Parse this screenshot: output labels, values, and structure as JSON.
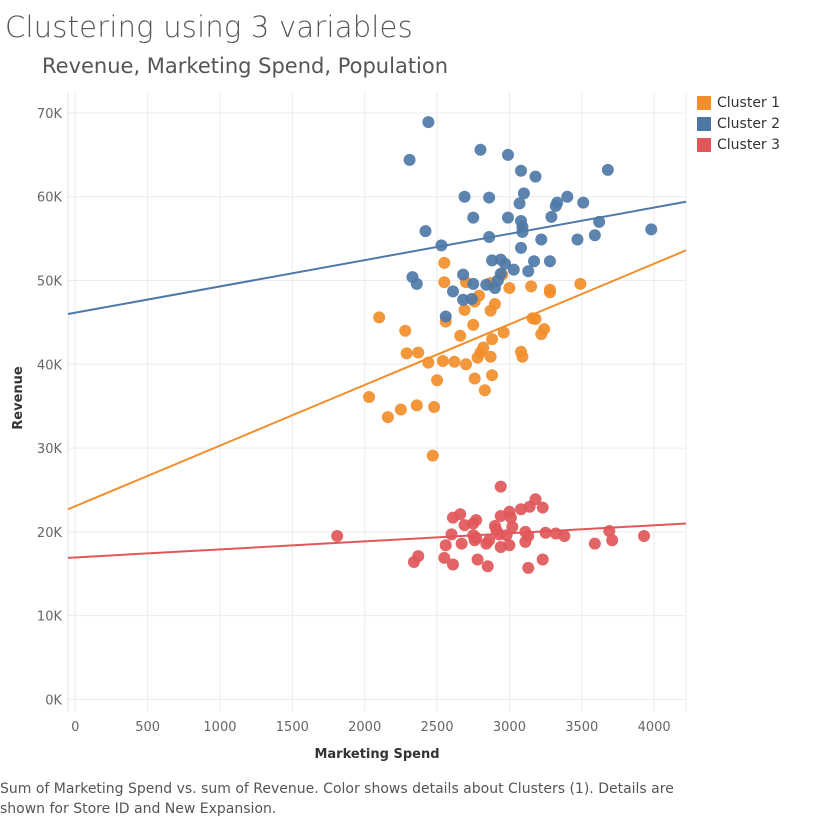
{
  "header": {
    "title": "Clustering using 3 variables",
    "subtitle": "Revenue, Marketing Spend, Population"
  },
  "caption": "Sum of Marketing Spend vs. sum of Revenue.  Color shows details about Clusters (1).  Details are shown for Store ID and New Expansion.",
  "chart_data": {
    "type": "scatter",
    "xlabel": "Marketing Spend",
    "ylabel": "Revenue",
    "xlim": [
      -50,
      4220
    ],
    "ylim": [
      -1500,
      72500
    ],
    "x_ticks": [
      0,
      500,
      1000,
      1500,
      2000,
      2500,
      3000,
      3500,
      4000
    ],
    "y_ticks": [
      0,
      10000,
      20000,
      30000,
      40000,
      50000,
      60000,
      70000
    ],
    "x_tick_labels": [
      "0",
      "500",
      "1000",
      "1500",
      "2000",
      "2500",
      "3000",
      "3500",
      "4000"
    ],
    "y_tick_labels": [
      "0K",
      "10K",
      "20K",
      "30K",
      "40K",
      "50K",
      "60K",
      "70K"
    ],
    "grid": true,
    "legend_position": "top-right",
    "series": [
      {
        "name": "Cluster 1",
        "color": "#f28e2b",
        "trend": [
          [
            -50,
            22700
          ],
          [
            4220,
            53600
          ]
        ],
        "points": [
          [
            2550,
            52100
          ],
          [
            2550,
            49800
          ],
          [
            2700,
            49800
          ],
          [
            2790,
            48200
          ],
          [
            2870,
            49700
          ],
          [
            2950,
            50700
          ],
          [
            2870,
            46400
          ],
          [
            2900,
            47200
          ],
          [
            2760,
            47500
          ],
          [
            2690,
            46500
          ],
          [
            2560,
            45100
          ],
          [
            2750,
            44700
          ],
          [
            2660,
            43400
          ],
          [
            3000,
            49100
          ],
          [
            3150,
            49300
          ],
          [
            3280,
            48600
          ],
          [
            3280,
            48900
          ],
          [
            3490,
            49600
          ],
          [
            3160,
            45500
          ],
          [
            3180,
            45400
          ],
          [
            3240,
            44200
          ],
          [
            3220,
            43600
          ],
          [
            2960,
            43800
          ],
          [
            2880,
            43000
          ],
          [
            2100,
            45600
          ],
          [
            2280,
            44000
          ],
          [
            2290,
            41300
          ],
          [
            2370,
            41400
          ],
          [
            2440,
            40200
          ],
          [
            2540,
            40400
          ],
          [
            2620,
            40300
          ],
          [
            2700,
            40000
          ],
          [
            2780,
            40800
          ],
          [
            2800,
            41400
          ],
          [
            2820,
            42000
          ],
          [
            2870,
            40900
          ],
          [
            3080,
            41500
          ],
          [
            3090,
            40900
          ],
          [
            2500,
            38100
          ],
          [
            2760,
            38300
          ],
          [
            2880,
            38700
          ],
          [
            2830,
            36900
          ],
          [
            2030,
            36100
          ],
          [
            2250,
            34600
          ],
          [
            2360,
            35100
          ],
          [
            2480,
            34900
          ],
          [
            2160,
            33700
          ],
          [
            2470,
            29100
          ]
        ]
      },
      {
        "name": "Cluster 2",
        "color": "#4e79a7",
        "trend": [
          [
            -50,
            46000
          ],
          [
            4220,
            59400
          ]
        ],
        "points": [
          [
            2440,
            68900
          ],
          [
            2310,
            64400
          ],
          [
            2800,
            65600
          ],
          [
            2990,
            65000
          ],
          [
            3080,
            63100
          ],
          [
            3180,
            62400
          ],
          [
            3680,
            63200
          ],
          [
            2690,
            60000
          ],
          [
            2860,
            59900
          ],
          [
            3100,
            60400
          ],
          [
            3070,
            59200
          ],
          [
            3330,
            59300
          ],
          [
            3400,
            60000
          ],
          [
            3510,
            59300
          ],
          [
            3320,
            58900
          ],
          [
            2750,
            57500
          ],
          [
            2990,
            57500
          ],
          [
            3080,
            57100
          ],
          [
            3290,
            57600
          ],
          [
            3620,
            57000
          ],
          [
            3090,
            56400
          ],
          [
            3090,
            55800
          ],
          [
            2420,
            55900
          ],
          [
            2860,
            55200
          ],
          [
            3220,
            54900
          ],
          [
            3470,
            54900
          ],
          [
            3590,
            55400
          ],
          [
            3980,
            56100
          ],
          [
            2530,
            54200
          ],
          [
            3080,
            53900
          ],
          [
            2880,
            52400
          ],
          [
            2940,
            52500
          ],
          [
            2970,
            52000
          ],
          [
            3170,
            52300
          ],
          [
            3280,
            52300
          ],
          [
            3030,
            51300
          ],
          [
            3130,
            51100
          ],
          [
            2680,
            50700
          ],
          [
            2940,
            50800
          ],
          [
            2330,
            50400
          ],
          [
            2920,
            50000
          ],
          [
            2360,
            49600
          ],
          [
            2750,
            49600
          ],
          [
            2840,
            49500
          ],
          [
            2900,
            49100
          ],
          [
            2610,
            48700
          ],
          [
            2680,
            47700
          ],
          [
            2740,
            47800
          ],
          [
            2560,
            45700
          ]
        ]
      },
      {
        "name": "Cluster 3",
        "color": "#e15759",
        "trend": [
          [
            -50,
            16900
          ],
          [
            4220,
            21000
          ]
        ],
        "points": [
          [
            2940,
            25400
          ],
          [
            3180,
            23900
          ],
          [
            3140,
            23000
          ],
          [
            3080,
            22700
          ],
          [
            3230,
            22900
          ],
          [
            2610,
            21700
          ],
          [
            2660,
            22100
          ],
          [
            2750,
            21000
          ],
          [
            2770,
            21400
          ],
          [
            2940,
            21900
          ],
          [
            3000,
            22400
          ],
          [
            3010,
            21700
          ],
          [
            2690,
            20800
          ],
          [
            2900,
            20700
          ],
          [
            2910,
            20200
          ],
          [
            3020,
            20600
          ],
          [
            3110,
            20000
          ],
          [
            3130,
            19500
          ],
          [
            3250,
            19900
          ],
          [
            3320,
            19800
          ],
          [
            3380,
            19500
          ],
          [
            3690,
            20100
          ],
          [
            1810,
            19500
          ],
          [
            2600,
            19700
          ],
          [
            2750,
            19600
          ],
          [
            2770,
            19300
          ],
          [
            2860,
            19000
          ],
          [
            2930,
            19700
          ],
          [
            2980,
            19600
          ],
          [
            2760,
            19000
          ],
          [
            2670,
            18600
          ],
          [
            2560,
            18400
          ],
          [
            2840,
            18600
          ],
          [
            2940,
            18200
          ],
          [
            3000,
            18400
          ],
          [
            3110,
            18800
          ],
          [
            3590,
            18600
          ],
          [
            3710,
            19000
          ],
          [
            3930,
            19500
          ],
          [
            2340,
            16400
          ],
          [
            2370,
            17100
          ],
          [
            2550,
            16900
          ],
          [
            2780,
            16700
          ],
          [
            2610,
            16100
          ],
          [
            2850,
            15900
          ],
          [
            3130,
            15700
          ],
          [
            3230,
            16700
          ]
        ]
      }
    ]
  }
}
